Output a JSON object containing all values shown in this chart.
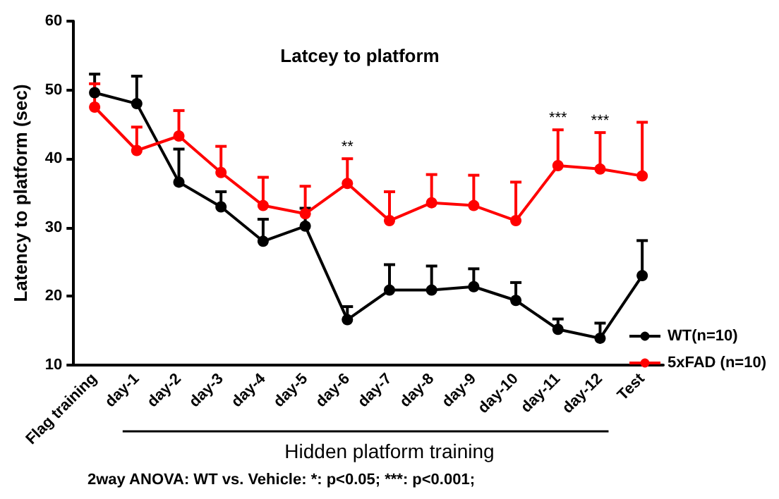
{
  "chart_data": {
    "type": "line",
    "title": "Latcey to platform",
    "ylabel": "Latency to platform (sec)",
    "xlabel": "Hidden platform training",
    "categories": [
      "Flag training",
      "day-1",
      "day-2",
      "day-3",
      "day-4",
      "day-5",
      "day-6",
      "day-7",
      "day-8",
      "day-9",
      "day-10",
      "day-11",
      "day-12",
      "Test"
    ],
    "series": [
      {
        "name": "WT(n=10)",
        "color": "#000000",
        "values": [
          49.6,
          48.0,
          36.6,
          33.0,
          28.0,
          30.2,
          16.6,
          20.9,
          20.9,
          21.4,
          19.4,
          15.2,
          13.9,
          23.0
        ],
        "errors": [
          [
            49.6,
            52.3
          ],
          [
            48.0,
            52.0
          ],
          [
            36.6,
            41.4
          ],
          [
            33.0,
            35.2
          ],
          [
            28.0,
            31.2
          ],
          [
            30.2,
            32.8
          ],
          [
            16.6,
            18.5
          ],
          [
            20.9,
            24.6
          ],
          [
            20.9,
            24.4
          ],
          [
            21.4,
            24.0
          ],
          [
            19.4,
            22.0
          ],
          [
            15.2,
            16.7
          ],
          [
            13.9,
            16.1
          ],
          [
            23.0,
            28.1
          ]
        ]
      },
      {
        "name": "5xFAD (n=10)",
        "color": "#ff0000",
        "values": [
          47.5,
          41.2,
          43.3,
          38.0,
          33.2,
          32.0,
          36.4,
          31.0,
          33.6,
          33.2,
          31.0,
          39.0,
          38.5,
          37.5
        ],
        "errors": [
          [
            47.5,
            50.9
          ],
          [
            41.2,
            44.6
          ],
          [
            43.3,
            47.0
          ],
          [
            38.0,
            41.8
          ],
          [
            33.2,
            37.3
          ],
          [
            32.0,
            36.0
          ],
          [
            36.4,
            40.0
          ],
          [
            31.0,
            35.2
          ],
          [
            33.6,
            37.7
          ],
          [
            33.2,
            37.6
          ],
          [
            31.0,
            36.6
          ],
          [
            39.0,
            44.2
          ],
          [
            38.5,
            43.8
          ],
          [
            37.5,
            45.3
          ]
        ]
      }
    ],
    "ylim": [
      10,
      60
    ],
    "yticks": [
      10,
      20,
      30,
      40,
      50,
      60
    ],
    "grid": false,
    "legend": "right",
    "marker": "circle",
    "line_style": "solid",
    "annotations": [
      {
        "text": "**",
        "x": "day-6",
        "y": 40.0
      },
      {
        "text": "***",
        "x": "day-11",
        "y": 44.2
      },
      {
        "text": "***",
        "x": "day-12",
        "y": 43.8
      },
      "2way ANOVA: WT vs. Vehicle: *: p<0.05; ***: p<0.001;"
    ]
  }
}
